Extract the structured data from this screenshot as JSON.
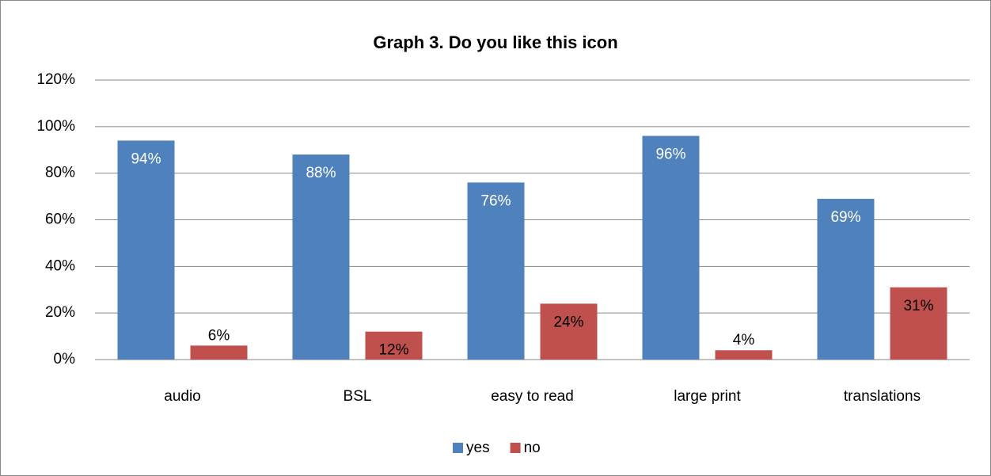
{
  "chart_data": {
    "type": "bar",
    "title": "Graph 3. Do you like this icon",
    "categories": [
      "audio",
      "BSL",
      "easy to read",
      "large print",
      "translations"
    ],
    "series": [
      {
        "name": "yes",
        "color": "#4f81bd",
        "values": [
          94,
          88,
          76,
          96,
          69
        ],
        "value_labels": [
          "94%",
          "88%",
          "76%",
          "96%",
          "69%"
        ]
      },
      {
        "name": "no",
        "color": "#c0504d",
        "values": [
          6,
          12,
          24,
          4,
          31
        ],
        "value_labels": [
          "6%",
          "12%",
          "24%",
          "4%",
          "31%"
        ]
      }
    ],
    "ylim": [
      0,
      120
    ],
    "yticks": [
      {
        "value": 0,
        "label": "0%"
      },
      {
        "value": 20,
        "label": "20%"
      },
      {
        "value": 40,
        "label": "40%"
      },
      {
        "value": 60,
        "label": "60%"
      },
      {
        "value": 80,
        "label": "80%"
      },
      {
        "value": 100,
        "label": "100%"
      },
      {
        "value": 120,
        "label": "120%"
      }
    ],
    "grid": true,
    "legend": "bottom"
  }
}
